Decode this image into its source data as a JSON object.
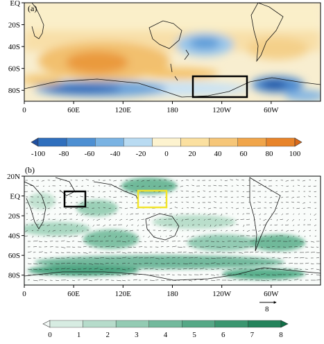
{
  "chart_data": [
    {
      "type": "heatmap",
      "panel_label": "(a)",
      "xlabel": "",
      "ylabel": "",
      "x_ticks": [
        "0",
        "60E",
        "120E",
        "180",
        "120W",
        "60W"
      ],
      "y_ticks": [
        "EQ",
        "20S",
        "40S",
        "60S",
        "80S"
      ],
      "xlim": [
        0,
        360
      ],
      "ylim": [
        -90,
        0
      ],
      "grid": false,
      "colorbar": {
        "orientation": "horizontal",
        "ticks": [
          "-100",
          "-80",
          "-60",
          "-40",
          "-20",
          "0",
          "20",
          "40",
          "60",
          "80",
          "100"
        ],
        "colors": [
          "#1f4fa0",
          "#2f6fbd",
          "#4d8fd2",
          "#7ab3e3",
          "#b9dbf2",
          "#fdf3cf",
          "#fbe0a0",
          "#f6c678",
          "#f0a54a",
          "#e8842a",
          "#d96a1a"
        ]
      },
      "features": [
        {
          "name": "positive-anomaly-indian-ocean",
          "lon": 90,
          "lat": -50,
          "value": 80
        },
        {
          "name": "negative-anomaly-south-pacific",
          "lon": 210,
          "lat": -40,
          "value": -40
        },
        {
          "name": "negative-anomaly-antarctic-indian",
          "lon": 70,
          "lat": -78,
          "value": -100
        },
        {
          "name": "negative-anomaly-amundsen",
          "lon": 290,
          "lat": -72,
          "value": -100
        },
        {
          "name": "positive-anomaly-pacific-60s",
          "lon": 190,
          "lat": -62,
          "value": 60
        }
      ],
      "box": {
        "lon_range": [
          195,
          255
        ],
        "lat_range": [
          -82,
          -60
        ],
        "color": "#000000"
      }
    },
    {
      "type": "heatmap",
      "panel_label": "(b)",
      "xlabel": "",
      "ylabel": "",
      "x_ticks": [
        "0",
        "60E",
        "120E",
        "180",
        "120W",
        "60W"
      ],
      "y_ticks": [
        "20N",
        "EQ",
        "20S",
        "40S",
        "60S",
        "80S"
      ],
      "xlim": [
        0,
        360
      ],
      "ylim": [
        -90,
        20
      ],
      "grid": false,
      "reference_vector": {
        "value": "8"
      },
      "colorbar": {
        "orientation": "horizontal",
        "ticks": [
          "0",
          "1",
          "2",
          "3",
          "4",
          "5",
          "6",
          "7",
          "8"
        ],
        "colors": [
          "#f2f8f5",
          "#d7ece2",
          "#b6dccb",
          "#93cbb3",
          "#72b99c",
          "#55a886",
          "#3b9670",
          "#23835b",
          "#0f6f47"
        ]
      },
      "boxes": [
        {
          "name": "black-box",
          "lon_range": [
            45,
            75
          ],
          "lat_range": [
            -10,
            8
          ],
          "color": "#000000"
        },
        {
          "name": "yellow-box",
          "lon_range": [
            140,
            175
          ],
          "lat_range": [
            -10,
            5
          ],
          "color": "#f2e52b"
        }
      ]
    }
  ]
}
